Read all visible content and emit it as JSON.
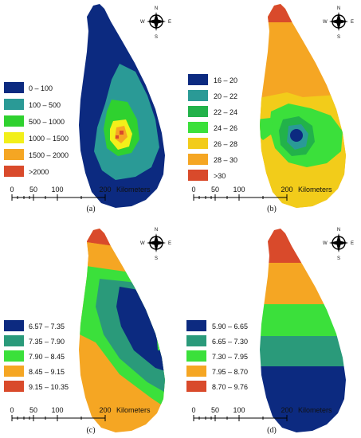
{
  "panels": [
    {
      "caption": "(a)",
      "legend": [
        {
          "label": "0 – 100",
          "color": "#0c2a80"
        },
        {
          "label": "100 – 500",
          "color": "#2a9a96"
        },
        {
          "label": "500 – 1000",
          "color": "#2fd12f"
        },
        {
          "label": "1000 – 1500",
          "color": "#f2ef1a"
        },
        {
          "label": "1500 – 2000",
          "color": "#f5a623"
        },
        {
          "label": ">2000",
          "color": "#d94a2b"
        }
      ]
    },
    {
      "caption": "(b)",
      "legend": [
        {
          "label": "16 – 20",
          "color": "#0c2a80"
        },
        {
          "label": "20 – 22",
          "color": "#2a9a96"
        },
        {
          "label": "22 – 24",
          "color": "#22b24a"
        },
        {
          "label": "24 – 26",
          "color": "#3be03b"
        },
        {
          "label": "26 – 28",
          "color": "#f2cc1a"
        },
        {
          "label": "28 – 30",
          "color": "#f5a623"
        },
        {
          "label": ">30",
          "color": "#d94a2b"
        }
      ]
    },
    {
      "caption": "(c)",
      "legend": [
        {
          "label": "6.57 – 7.35",
          "color": "#0c2a80"
        },
        {
          "label": "7.35 – 7.90",
          "color": "#2a9a7a"
        },
        {
          "label": "7.90 – 8.45",
          "color": "#3be03b"
        },
        {
          "label": "8.45 – 9.15",
          "color": "#f5a623"
        },
        {
          "label": "9.15 – 10.35",
          "color": "#d94a2b"
        }
      ]
    },
    {
      "caption": "(d)",
      "legend": [
        {
          "label": "5.90 – 6.65",
          "color": "#0c2a80"
        },
        {
          "label": "6.65 – 7.30",
          "color": "#2a9a7a"
        },
        {
          "label": "7.30 – 7.95",
          "color": "#3be03b"
        },
        {
          "label": "7.95 – 8.70",
          "color": "#f5a623"
        },
        {
          "label": "8.70 – 9.76",
          "color": "#d94a2b"
        }
      ]
    }
  ],
  "scale": {
    "ticks": [
      "0",
      "50",
      "100",
      "200"
    ],
    "unit": "Kilometers"
  },
  "compass": {
    "n": "N",
    "s": "S",
    "e": "E",
    "w": "W"
  }
}
